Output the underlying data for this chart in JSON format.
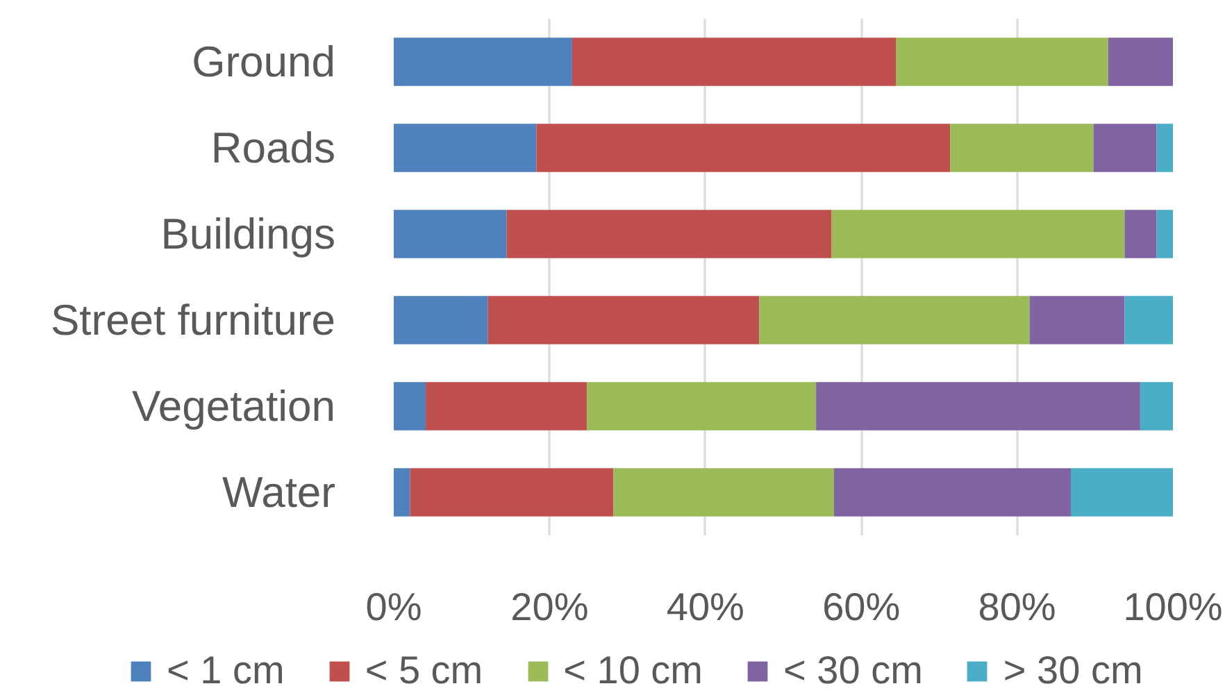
{
  "chart_data": {
    "type": "bar",
    "orientation": "horizontal",
    "stacked": true,
    "categories": [
      "Ground",
      "Roads",
      "Buildings",
      "Street furniture",
      "Vegetation",
      "Water"
    ],
    "series": [
      {
        "name": "< 1 cm",
        "color": "#4f81bd",
        "values": [
          22.9,
          18.3,
          14.5,
          12.1,
          4.1,
          2.1
        ]
      },
      {
        "name": "< 5 cm",
        "color": "#c0504d",
        "values": [
          41.6,
          53.1,
          41.7,
          34.8,
          20.7,
          26.1
        ]
      },
      {
        "name": "< 10 cm",
        "color": "#9bbb59",
        "values": [
          27.2,
          18.4,
          37.6,
          34.7,
          29.4,
          28.3
        ]
      },
      {
        "name": "< 30 cm",
        "color": "#8064a2",
        "values": [
          8.3,
          8.1,
          4.1,
          12.2,
          41.6,
          30.4
        ]
      },
      {
        "name": "> 30 cm",
        "color": "#4bacc6",
        "values": [
          null,
          2.1,
          2.1,
          6.2,
          4.2,
          13.1
        ]
      }
    ],
    "xlim": [
      0,
      100
    ],
    "xticks": [
      {
        "value": 0,
        "label": "0%"
      },
      {
        "value": 20,
        "label": "20%"
      },
      {
        "value": 40,
        "label": "40%"
      },
      {
        "value": 60,
        "label": "60%"
      },
      {
        "value": 80,
        "label": "80%"
      },
      {
        "value": 100,
        "label": "100%"
      }
    ],
    "grid": "x",
    "legend": "bottom"
  }
}
